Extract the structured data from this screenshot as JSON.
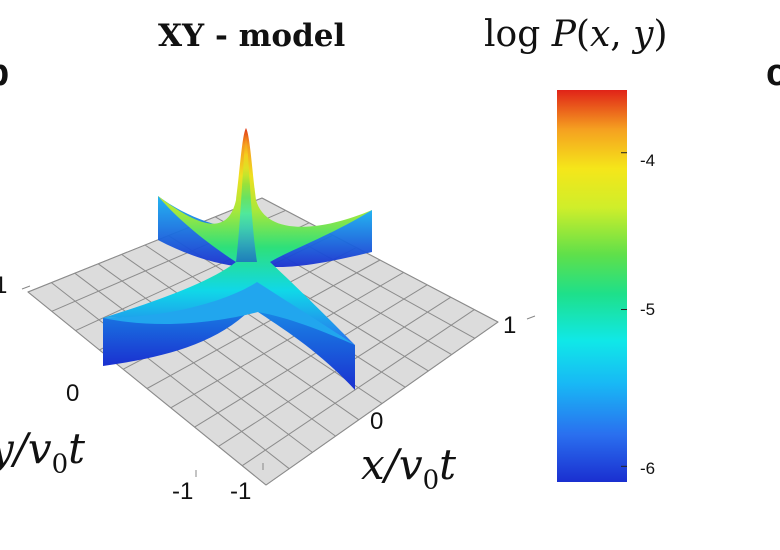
{
  "chart_data": {
    "type": "surface3d",
    "title": "XY - model",
    "colorbar_label": "log P(x, y)",
    "xlabel": "x/v0t",
    "ylabel": "y/v0t",
    "x_ticks": [
      "-1",
      "0",
      "1"
    ],
    "y_ticks": [
      "-1",
      "0",
      "1"
    ],
    "xlim": [
      -1,
      1
    ],
    "ylim": [
      -1,
      1
    ],
    "colorbar_ticks": [
      -4,
      -5,
      -6
    ],
    "colorbar_range": [
      -6.1,
      -3.6
    ],
    "colormap": "jet",
    "peak_log_value": -3.7,
    "arm_log_value": -6.0,
    "floor_color": "#dcdcdc",
    "grid": true
  },
  "panel_labels": {
    "left": "b",
    "right": "c"
  }
}
